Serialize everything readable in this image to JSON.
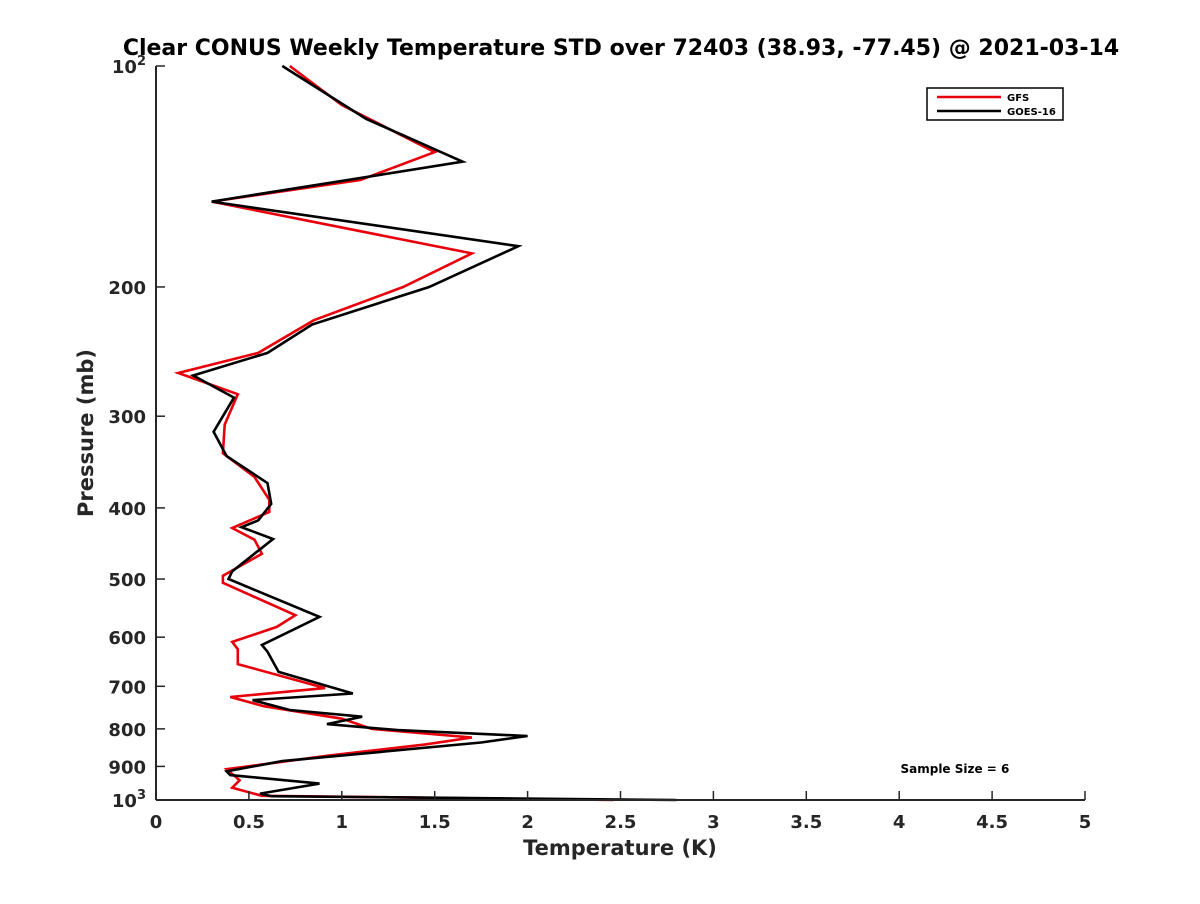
{
  "chart_data": {
    "type": "line",
    "title": "Clear CONUS Weekly Temperature STD over 72403 (38.93, -77.45) @ 2021-03-14",
    "xlabel": "Temperature (K)",
    "ylabel": "Pressure (mb)",
    "xlim": [
      0,
      5
    ],
    "ylim": [
      1000,
      100
    ],
    "y_scale": "log",
    "y_reversed": true,
    "grid": false,
    "legend_position": "top-right",
    "x_ticks": [
      {
        "value": 0,
        "label": "0"
      },
      {
        "value": 0.5,
        "label": "0.5"
      },
      {
        "value": 1,
        "label": "1"
      },
      {
        "value": 1.5,
        "label": "1.5"
      },
      {
        "value": 2,
        "label": "2"
      },
      {
        "value": 2.5,
        "label": "2.5"
      },
      {
        "value": 3,
        "label": "3"
      },
      {
        "value": 3.5,
        "label": "3.5"
      },
      {
        "value": 4,
        "label": "4"
      },
      {
        "value": 4.5,
        "label": "4.5"
      },
      {
        "value": 5,
        "label": "5"
      }
    ],
    "y_ticks": [
      {
        "value": 100,
        "label": "10",
        "sup": "2"
      },
      {
        "value": 200,
        "label": "200",
        "sup": ""
      },
      {
        "value": 300,
        "label": "300",
        "sup": ""
      },
      {
        "value": 400,
        "label": "400",
        "sup": ""
      },
      {
        "value": 500,
        "label": "500",
        "sup": ""
      },
      {
        "value": 600,
        "label": "600",
        "sup": ""
      },
      {
        "value": 700,
        "label": "700",
        "sup": ""
      },
      {
        "value": 800,
        "label": "800",
        "sup": ""
      },
      {
        "value": 900,
        "label": "900",
        "sup": ""
      },
      {
        "value": 1000,
        "label": "10",
        "sup": "3"
      }
    ],
    "series": [
      {
        "name": "GFS",
        "color": "#e8000b",
        "points": [
          [
            0.72,
            100
          ],
          [
            1.0,
            113
          ],
          [
            1.5,
            131
          ],
          [
            1.1,
            143
          ],
          [
            0.3,
            153
          ],
          [
            1.7,
            180
          ],
          [
            1.33,
            200
          ],
          [
            0.85,
            222
          ],
          [
            0.55,
            246
          ],
          [
            0.12,
            262
          ],
          [
            0.44,
            280
          ],
          [
            0.37,
            308
          ],
          [
            0.36,
            337
          ],
          [
            0.53,
            363
          ],
          [
            0.61,
            390
          ],
          [
            0.61,
            405
          ],
          [
            0.41,
            426
          ],
          [
            0.53,
            442
          ],
          [
            0.57,
            462
          ],
          [
            0.36,
            495
          ],
          [
            0.36,
            506
          ],
          [
            0.75,
            560
          ],
          [
            0.65,
            581
          ],
          [
            0.41,
            609
          ],
          [
            0.44,
            623
          ],
          [
            0.44,
            653
          ],
          [
            0.91,
            704
          ],
          [
            0.4,
            724
          ],
          [
            0.58,
            745
          ],
          [
            1.0,
            775
          ],
          [
            1.16,
            800
          ],
          [
            1.7,
            822
          ],
          [
            1.45,
            840
          ],
          [
            0.93,
            870
          ],
          [
            0.38,
            908
          ],
          [
            0.45,
            940
          ],
          [
            0.41,
            962
          ],
          [
            0.57,
            987
          ],
          [
            2.46,
            1000
          ]
        ]
      },
      {
        "name": "GOES-16",
        "color": "#000000",
        "points": [
          [
            0.68,
            100
          ],
          [
            1.13,
            118
          ],
          [
            1.65,
            135
          ],
          [
            0.3,
            153
          ],
          [
            1.95,
            176
          ],
          [
            1.47,
            200
          ],
          [
            0.84,
            225
          ],
          [
            0.6,
            246
          ],
          [
            0.2,
            264
          ],
          [
            0.42,
            283
          ],
          [
            0.31,
            315
          ],
          [
            0.38,
            340
          ],
          [
            0.6,
            370
          ],
          [
            0.62,
            395
          ],
          [
            0.55,
            416
          ],
          [
            0.46,
            425
          ],
          [
            0.63,
            441
          ],
          [
            0.41,
            488
          ],
          [
            0.39,
            500
          ],
          [
            0.88,
            563
          ],
          [
            0.57,
            615
          ],
          [
            0.6,
            628
          ],
          [
            0.66,
            669
          ],
          [
            1.06,
            716
          ],
          [
            0.52,
            731
          ],
          [
            0.72,
            754
          ],
          [
            1.11,
            770
          ],
          [
            0.92,
            788
          ],
          [
            1.3,
            803
          ],
          [
            2.0,
            818
          ],
          [
            1.75,
            835
          ],
          [
            0.68,
            885
          ],
          [
            0.38,
            914
          ],
          [
            0.4,
            925
          ],
          [
            0.88,
            950
          ],
          [
            0.56,
            980
          ],
          [
            0.62,
            988
          ],
          [
            2.8,
            1000
          ]
        ]
      }
    ],
    "annotations": [
      {
        "text": "Sample Size = 6",
        "x": 4.3,
        "y": 905
      }
    ]
  }
}
